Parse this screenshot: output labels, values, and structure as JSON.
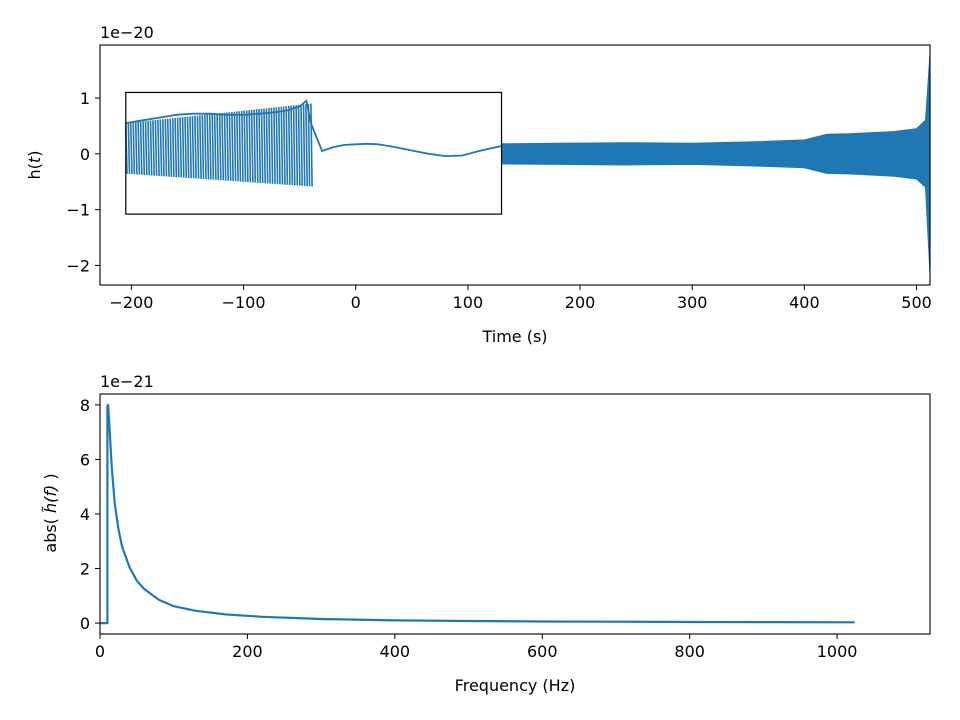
{
  "chart_data": [
    {
      "type": "line",
      "xlabel": "Time (s)",
      "ylabel_prefix": "h(",
      "ylabel_var": "t",
      "ylabel_suffix": ")",
      "offset_text": "1e−20",
      "xlim": [
        -228,
        512
      ],
      "ylim": [
        -2.35,
        1.95
      ],
      "xticks": [
        -200,
        -100,
        0,
        100,
        200,
        300,
        400,
        500
      ],
      "xtick_labels": [
        "−200",
        "−100",
        "0",
        "100",
        "200",
        "300",
        "400",
        "500"
      ],
      "yticks": [
        -2,
        -1,
        0,
        1
      ],
      "ytick_labels": [
        "−2",
        "−1",
        "0",
        "1"
      ],
      "series": [
        {
          "color": "#1f77b4",
          "x": [
            -205,
            -190,
            -175,
            -160,
            -145,
            -130,
            -115,
            -100,
            -85,
            -70,
            -60,
            -50,
            -44,
            -40,
            -37,
            -30,
            -20,
            -10,
            0,
            10,
            20,
            35,
            50,
            65,
            80,
            95,
            110,
            130
          ],
          "y": [
            0.55,
            0.6,
            0.65,
            0.7,
            0.72,
            0.72,
            0.7,
            0.7,
            0.72,
            0.75,
            0.78,
            0.85,
            0.95,
            0.55,
            0.4,
            0.05,
            0.12,
            0.16,
            0.17,
            0.18,
            0.17,
            0.12,
            0.06,
            0.0,
            -0.04,
            -0.03,
            0.05,
            0.14
          ],
          "envelope_x": [
            130,
            180,
            240,
            300,
            360,
            400,
            410,
            420,
            440,
            480,
            500,
            508,
            512
          ],
          "envelope_y": [
            0.18,
            0.19,
            0.2,
            0.19,
            0.22,
            0.25,
            0.3,
            0.35,
            0.36,
            0.4,
            0.45,
            0.6,
            1.8
          ]
        }
      ],
      "inset_box": {
        "x": [
          -205,
          130
        ],
        "y": [
          -1.08,
          1.1
        ]
      }
    },
    {
      "type": "line",
      "xlabel": "Frequency (Hz)",
      "ylabel_prefix": "abs( ",
      "ylabel_var": "h̃(f)",
      "ylabel_suffix": " )",
      "offset_text": "1e−21",
      "xlim": [
        0,
        1126
      ],
      "ylim": [
        -0.4,
        8.4
      ],
      "xticks": [
        0,
        200,
        400,
        600,
        800,
        1000
      ],
      "xtick_labels": [
        "0",
        "200",
        "400",
        "600",
        "800",
        "1000"
      ],
      "yticks": [
        0,
        2,
        4,
        6,
        8
      ],
      "ytick_labels": [
        "0",
        "2",
        "4",
        "6",
        "8"
      ],
      "series": [
        {
          "color": "#1f77b4",
          "x": [
            0,
            10,
            10,
            11,
            13,
            16,
            20,
            25,
            30,
            40,
            50,
            60,
            80,
            100,
            130,
            170,
            220,
            300,
            400,
            500,
            600,
            700,
            800,
            900,
            1024
          ],
          "y": [
            0,
            0,
            7.95,
            8.0,
            7.1,
            5.7,
            4.4,
            3.45,
            2.8,
            2.05,
            1.55,
            1.25,
            0.85,
            0.62,
            0.45,
            0.32,
            0.23,
            0.15,
            0.1,
            0.075,
            0.06,
            0.05,
            0.04,
            0.035,
            0.03
          ]
        }
      ]
    }
  ]
}
